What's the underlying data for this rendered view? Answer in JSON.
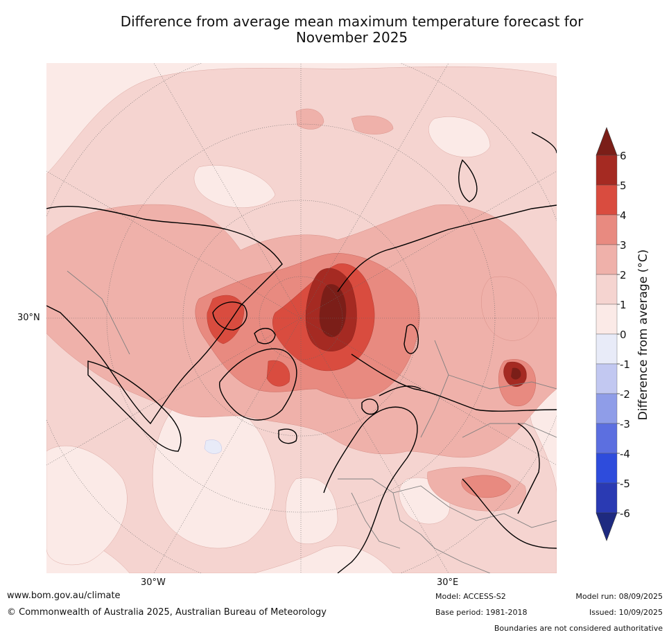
{
  "title_line1": "Difference from average mean maximum temperature forecast for",
  "title_line2": "November 2025",
  "map": {
    "projection": "north polar stereographic",
    "lat_label": "30°N",
    "lon_label_left": "30°W",
    "lon_label_right": "30°E",
    "colors": {
      "ocean_base": "#fbe9e6",
      "land_bounds": "#000000",
      "country_bounds": "#7f7f7f",
      "graticule": "#666666"
    }
  },
  "legend": {
    "label": "Difference from average (°C)",
    "ticks": [
      "6",
      "5",
      "4",
      "3",
      "2",
      "1",
      "0",
      "-1",
      "-2",
      "-3",
      "-4",
      "-5",
      "-6"
    ],
    "bins": [
      {
        "range": "> 6",
        "color": "#7b1e18"
      },
      {
        "range": "5 to 6",
        "color": "#a52a22"
      },
      {
        "range": "4 to 5",
        "color": "#d94c3f"
      },
      {
        "range": "3 to 4",
        "color": "#e88a80"
      },
      {
        "range": "2 to 3",
        "color": "#efb1aa"
      },
      {
        "range": "1 to 2",
        "color": "#f5d4d0"
      },
      {
        "range": "0 to 1",
        "color": "#fbeae7"
      },
      {
        "range": "-1 to 0",
        "color": "#e8ebf8"
      },
      {
        "range": "-2 to -1",
        "color": "#c2c8f1"
      },
      {
        "range": "-3 to -2",
        "color": "#8f9de8"
      },
      {
        "range": "-4 to -3",
        "color": "#5c6fe0"
      },
      {
        "range": "-5 to -4",
        "color": "#2e4cdc"
      },
      {
        "range": "-6 to -5",
        "color": "#2a3ab3"
      },
      {
        "range": "< -6",
        "color": "#1e2a80"
      }
    ]
  },
  "footer": {
    "website": "www.bom.gov.au/climate",
    "copyright": "© Commonwealth of Australia 2025, Australian Bureau of Meteorology",
    "model": "Model: ACCESS-S2",
    "base_period": "Base period: 1981-2018",
    "model_run": "Model run: 08/09/2025",
    "issued": "Issued: 10/09/2025",
    "disclaimer": "Boundaries are not considered authoritative"
  }
}
